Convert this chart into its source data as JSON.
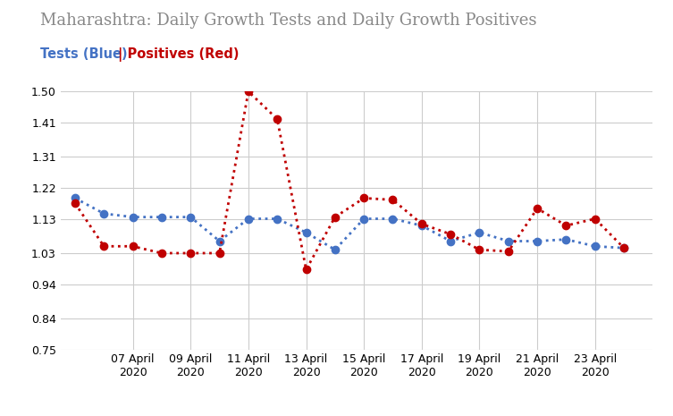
{
  "title": "Maharashtra: Daily Growth Tests and Daily Growth Positives",
  "title_color": "#888888",
  "blue_color": "#4472C4",
  "red_color": "#C00000",
  "background_color": "#FFFFFF",
  "grid_color": "#CCCCCC",
  "yticks": [
    0.75,
    0.84,
    0.94,
    1.03,
    1.13,
    1.22,
    1.31,
    1.41,
    1.5
  ],
  "xtick_days": [
    7,
    9,
    11,
    13,
    15,
    17,
    19,
    21,
    23
  ],
  "blue_days": [
    5,
    6,
    7,
    8,
    9,
    10,
    11,
    12,
    13,
    14,
    15,
    16,
    17,
    18,
    19,
    20,
    21,
    22,
    23,
    24
  ],
  "blue_vals": [
    1.19,
    1.145,
    1.135,
    1.135,
    1.135,
    1.065,
    1.13,
    1.13,
    1.09,
    1.04,
    1.13,
    1.13,
    1.11,
    1.065,
    1.09,
    1.065,
    1.065,
    1.07,
    1.05,
    1.045
  ],
  "red_days": [
    5,
    6,
    7,
    8,
    9,
    10,
    11,
    12,
    13,
    14,
    15,
    16,
    17,
    18,
    19,
    20,
    21,
    22,
    23,
    24
  ],
  "red_vals": [
    1.175,
    1.05,
    1.05,
    1.03,
    1.03,
    1.03,
    1.5,
    1.42,
    0.982,
    1.135,
    1.19,
    1.185,
    1.115,
    1.085,
    1.04,
    1.035,
    1.16,
    1.11,
    1.13,
    1.045
  ]
}
